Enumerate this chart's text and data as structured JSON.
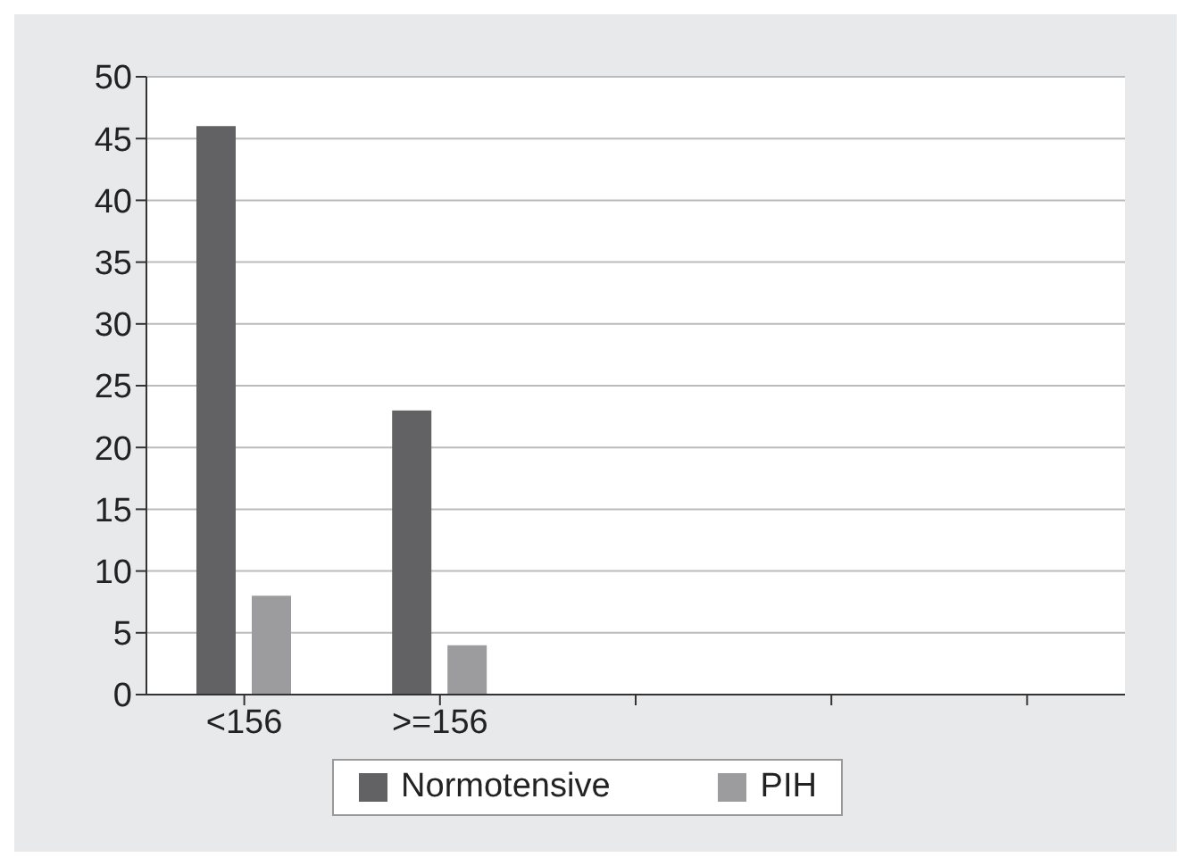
{
  "chart_data": {
    "type": "bar",
    "categories": [
      "<156",
      ">=156",
      null,
      null,
      null
    ],
    "series": [
      {
        "name": "Normotensive",
        "color": "#626264",
        "values": [
          46,
          23,
          null,
          null,
          null
        ]
      },
      {
        "name": "PIH",
        "color": "#9c9c9e",
        "values": [
          8,
          4,
          null,
          null,
          null
        ]
      }
    ],
    "ylim": [
      0,
      50
    ],
    "yticks": [
      0,
      5,
      10,
      15,
      20,
      25,
      30,
      35,
      40,
      45,
      50
    ],
    "grid": "y",
    "legend": "bottom"
  }
}
